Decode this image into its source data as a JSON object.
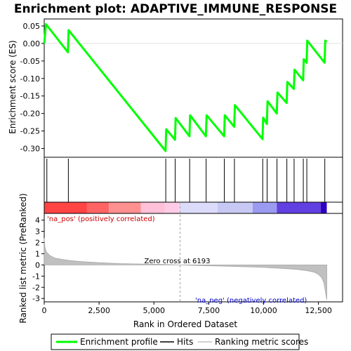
{
  "chart_data": {
    "type": "line",
    "title": "Enrichment plot: ADAPTIVE_IMMUNE_RESPONSE",
    "top_panel": {
      "ylabel": "Enrichment score (ES)",
      "ylim": [
        -0.325,
        0.07
      ],
      "yticks": [
        0.05,
        0.0,
        -0.05,
        -0.1,
        -0.15,
        -0.2,
        -0.25,
        -0.3
      ],
      "ytick_labels": [
        "0.05",
        "0.00",
        "-0.05",
        "-0.10",
        "-0.15",
        "-0.20",
        "-0.25",
        "-0.30"
      ],
      "series": [
        {
          "name": "Enrichment profile",
          "color": "#00ff00",
          "x": [
            0,
            80,
            1080,
            1110,
            5530,
            5560,
            5960,
            5990,
            6620,
            6650,
            7370,
            7400,
            8200,
            8230,
            8660,
            8690,
            9950,
            9980,
            10150,
            10180,
            10600,
            10630,
            11050,
            11080,
            11380,
            11410,
            11800,
            11830,
            11960,
            11990,
            12780,
            12810,
            12880
          ],
          "y": [
            0.0,
            0.055,
            -0.025,
            0.038,
            -0.307,
            -0.245,
            -0.275,
            -0.213,
            -0.265,
            -0.205,
            -0.265,
            -0.205,
            -0.265,
            -0.205,
            -0.238,
            -0.176,
            -0.273,
            -0.212,
            -0.23,
            -0.165,
            -0.2,
            -0.14,
            -0.17,
            -0.11,
            -0.13,
            -0.075,
            -0.105,
            -0.045,
            -0.055,
            0.008,
            -0.055,
            0.008,
            0.005
          ]
        }
      ]
    },
    "hits": {
      "name": "Hits",
      "x": [
        120,
        1100,
        5540,
        5970,
        6630,
        7380,
        8210,
        8670,
        9960,
        10160,
        10610,
        11060,
        11390,
        11810,
        11970,
        12790
      ]
    },
    "color_bar": {
      "segments": [
        {
          "from": 0,
          "to": 1950,
          "color": "#ff4444"
        },
        {
          "from": 1950,
          "to": 2950,
          "color": "#ff6464"
        },
        {
          "from": 2950,
          "to": 4400,
          "color": "#ff9090"
        },
        {
          "from": 4400,
          "to": 5500,
          "color": "#ffc0d8"
        },
        {
          "from": 5500,
          "to": 6150,
          "color": "#ffcce8"
        },
        {
          "from": 6150,
          "to": 7900,
          "color": "#dcdcfa"
        },
        {
          "from": 7900,
          "to": 9500,
          "color": "#c8c8f4"
        },
        {
          "from": 9500,
          "to": 10600,
          "color": "#9a9af0"
        },
        {
          "from": 10600,
          "to": 12600,
          "color": "#6040e0"
        },
        {
          "from": 12600,
          "to": 12880,
          "color": "#3000c0"
        }
      ]
    },
    "bottom_panel": {
      "ylabel": "Ranked list metric (PreRanked)",
      "xlabel": "Rank in Ordered Dataset",
      "ylim": [
        -3.3,
        4.6
      ],
      "yticks": [
        4,
        3,
        2,
        1,
        0,
        -1,
        -2,
        -3
      ],
      "ytick_labels": [
        "4",
        "3",
        "2",
        "1",
        "0",
        "-1",
        "-2",
        "-3"
      ],
      "xlim": [
        0,
        13600
      ],
      "xticks": [
        0,
        2500,
        5000,
        7500,
        10000,
        12500
      ],
      "xtick_labels": [
        "0",
        "2,500",
        "5,000",
        "7,500",
        "10,000",
        "12,500"
      ],
      "metric": {
        "name": "Ranking metric scores",
        "x": [
          0,
          30,
          100,
          250,
          500,
          800,
          1200,
          1700,
          2500,
          3500,
          4500,
          5500,
          6193,
          7000,
          8000,
          9000,
          10000,
          10800,
          11500,
          12000,
          12300,
          12500,
          12650,
          12750,
          12820,
          12880
        ],
        "y": [
          2.4,
          1.6,
          1.15,
          0.85,
          0.6,
          0.5,
          0.38,
          0.3,
          0.2,
          0.12,
          0.08,
          0.04,
          0.0,
          -0.05,
          -0.1,
          -0.16,
          -0.22,
          -0.3,
          -0.4,
          -0.52,
          -0.65,
          -0.85,
          -1.15,
          -1.6,
          -2.4,
          -3.1
        ]
      },
      "zero_cross_x": 6193,
      "annotations": {
        "pos_label": "'na_pos' (positively correlated)",
        "neg_label": "'na_neg' (negatively correlated)",
        "zero_cross_label": "Zero cross at 6193"
      }
    },
    "legend": {
      "placement": "bottom",
      "entries": [
        {
          "label": "Enrichment profile",
          "color": "#00ff00"
        },
        {
          "label": "Hits",
          "color": "#000000"
        },
        {
          "label": "Ranking metric scores",
          "color": "#c0c0c0"
        }
      ]
    },
    "colors": {
      "profile": "#00ff00",
      "pos_text": "#cc0000",
      "neg_text": "#0000cc",
      "metric_fill": "#c0c0c0"
    }
  }
}
